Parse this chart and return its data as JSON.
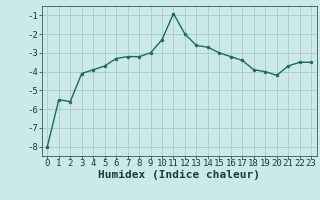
{
  "x": [
    0,
    1,
    2,
    3,
    4,
    5,
    6,
    7,
    8,
    9,
    10,
    11,
    12,
    13,
    14,
    15,
    16,
    17,
    18,
    19,
    20,
    21,
    22,
    23
  ],
  "y": [
    -8.0,
    -5.5,
    -5.6,
    -4.1,
    -3.9,
    -3.7,
    -3.3,
    -3.2,
    -3.2,
    -3.0,
    -2.3,
    -0.9,
    -2.0,
    -2.6,
    -2.7,
    -3.0,
    -3.2,
    -3.4,
    -3.9,
    -4.0,
    -4.2,
    -3.7,
    -3.5,
    -3.5
  ],
  "xlabel": "Humidex (Indice chaleur)",
  "background_color": "#cce9e9",
  "grid_color": "#aacfcf",
  "line_color": "#1a6b5f",
  "marker_color": "#1a6b5f",
  "ylim": [
    -8.5,
    -0.5
  ],
  "xlim": [
    -0.5,
    23.5
  ],
  "yticks": [
    -8,
    -7,
    -6,
    -5,
    -4,
    -3,
    -2,
    -1
  ],
  "xticks": [
    0,
    1,
    2,
    3,
    4,
    5,
    6,
    7,
    8,
    9,
    10,
    11,
    12,
    13,
    14,
    15,
    16,
    17,
    18,
    19,
    20,
    21,
    22,
    23
  ],
  "tick_fontsize": 6.5,
  "xlabel_fontsize": 8,
  "label_color": "#1a3a3a"
}
